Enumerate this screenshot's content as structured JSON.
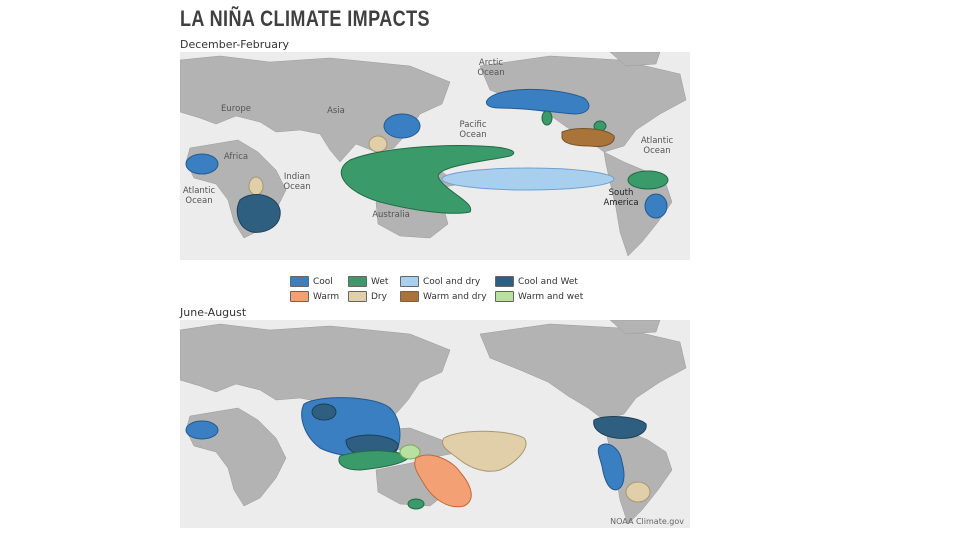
{
  "title": "LA NIÑA CLIMATE IMPACTS",
  "winter": {
    "season_label": "December-February",
    "labels": {
      "arctic": "Arctic\nOcean",
      "europe": "Europe",
      "asia": "Asia",
      "africa": "Africa",
      "pacific": "Pacific\nOcean",
      "indian": "Indian\nOcean",
      "atlantic_w": "Atlantic\nOcean",
      "atlantic_e": "Atlantic\nOcean",
      "australia": "Australia",
      "south_america": "South\nAmerica"
    }
  },
  "summer": {
    "season_label": "June-August",
    "credit": "NOAA Climate.gov"
  },
  "legend": [
    {
      "label": "Cool",
      "color": "#3a7fc1"
    },
    {
      "label": "Wet",
      "color": "#3a9a6a"
    },
    {
      "label": "Cool and dry",
      "color": "#a9cfee"
    },
    {
      "label": "Cool and Wet",
      "color": "#2f5f80"
    },
    {
      "label": "Warm",
      "color": "#f2a074"
    },
    {
      "label": "Dry",
      "color": "#e0cfa8"
    },
    {
      "label": "Warm and dry",
      "color": "#a8743a"
    },
    {
      "label": "Warm and wet",
      "color": "#b8e0a0"
    }
  ],
  "colors": {
    "land": "#b3b3b3",
    "ocean": "#ececec",
    "cool": "#3a7fc1",
    "wet": "#3a9a6a",
    "cool_dry": "#a9cfee",
    "cool_wet": "#2f5f80",
    "warm": "#f2a074",
    "dry": "#e0cfa8",
    "warm_dry": "#a8743a",
    "warm_wet": "#b8e0a0"
  }
}
